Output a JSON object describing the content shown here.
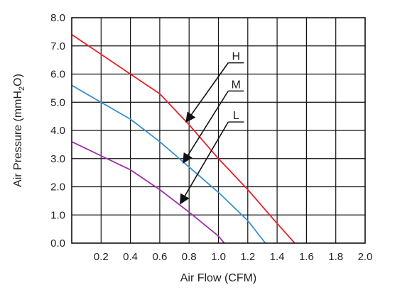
{
  "chart_data": {
    "type": "line",
    "xlabel": "Air Flow (CFM)",
    "ylabel": {
      "prefix": "Air Pressure (mmH",
      "sub": "2",
      "suffix": "O)"
    },
    "xlim": [
      0,
      2.0
    ],
    "ylim": [
      0,
      8.0
    ],
    "xticks": [
      "0.2",
      "0.4",
      "0.6",
      "0.8",
      "1.0",
      "1.2",
      "1.4",
      "1.6",
      "1.8",
      "2.0"
    ],
    "yticks": [
      "0.0",
      "1.0",
      "2.0",
      "3.0",
      "4.0",
      "5.0",
      "6.0",
      "7.0",
      "8.0"
    ],
    "grid": true,
    "series": [
      {
        "name": "H",
        "color": "#e8202a",
        "points": [
          [
            0,
            7.4
          ],
          [
            0.4,
            6.0
          ],
          [
            0.6,
            5.3
          ],
          [
            0.8,
            4.2
          ],
          [
            1.0,
            3.0
          ],
          [
            1.2,
            1.9
          ],
          [
            1.4,
            0.7
          ],
          [
            1.52,
            0.0
          ]
        ]
      },
      {
        "name": "M",
        "color": "#3a8fd0",
        "points": [
          [
            0,
            5.6
          ],
          [
            0.2,
            5.0
          ],
          [
            0.4,
            4.4
          ],
          [
            0.5,
            4.0
          ],
          [
            0.6,
            3.6
          ],
          [
            0.8,
            2.7
          ],
          [
            1.0,
            1.8
          ],
          [
            1.2,
            0.8
          ],
          [
            1.32,
            0.0
          ]
        ]
      },
      {
        "name": "L",
        "color": "#a030a8",
        "points": [
          [
            0,
            3.6
          ],
          [
            0.2,
            3.1
          ],
          [
            0.4,
            2.6
          ],
          [
            0.6,
            1.9
          ],
          [
            0.8,
            1.1
          ],
          [
            1.0,
            0.25
          ],
          [
            1.04,
            0.0
          ]
        ]
      }
    ],
    "annotations": [
      {
        "label": "H",
        "label_pos": [
          1.12,
          6.5
        ],
        "target": [
          0.78,
          4.3
        ]
      },
      {
        "label": "M",
        "label_pos": [
          1.12,
          5.5
        ],
        "target": [
          0.76,
          2.85
        ]
      },
      {
        "label": "L",
        "label_pos": [
          1.12,
          4.4
        ],
        "target": [
          0.74,
          1.4
        ]
      }
    ]
  }
}
